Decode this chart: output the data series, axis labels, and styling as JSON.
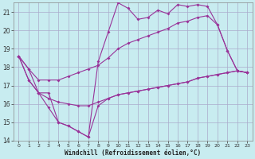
{
  "xlabel": "Windchill (Refroidissement éolien,°C)",
  "background_color": "#c8ecf0",
  "grid_color": "#aaaacc",
  "line_color": "#993399",
  "xlim_min": -0.5,
  "xlim_max": 23.5,
  "ylim_min": 14.0,
  "ylim_max": 21.5,
  "yticks": [
    14,
    15,
    16,
    17,
    18,
    19,
    20,
    21
  ],
  "xticks": [
    0,
    1,
    2,
    3,
    4,
    5,
    6,
    7,
    8,
    9,
    10,
    11,
    12,
    13,
    14,
    15,
    16,
    17,
    18,
    19,
    20,
    21,
    22,
    23
  ],
  "series": [
    {
      "x": [
        0,
        1,
        2,
        3,
        4,
        5,
        6,
        7,
        8,
        9,
        10,
        11,
        12,
        13,
        14,
        15,
        16,
        17,
        18,
        19,
        20,
        21,
        22,
        23
      ],
      "y": [
        18.6,
        17.3,
        16.6,
        16.6,
        15.0,
        14.8,
        14.5,
        14.2,
        18.3,
        19.9,
        21.5,
        21.2,
        20.6,
        20.7,
        21.1,
        20.9,
        21.4,
        21.3,
        21.4,
        21.3,
        20.3,
        18.9,
        17.8,
        17.7
      ]
    },
    {
      "x": [
        0,
        1,
        2,
        3,
        4,
        5,
        6,
        7,
        8,
        9,
        10,
        11,
        12,
        13,
        14,
        15,
        16,
        17,
        18,
        19,
        20,
        21,
        22,
        23
      ],
      "y": [
        18.6,
        17.9,
        17.3,
        17.3,
        17.3,
        17.5,
        17.7,
        17.9,
        18.1,
        18.5,
        19.0,
        19.3,
        19.5,
        19.7,
        19.9,
        20.1,
        20.4,
        20.5,
        20.7,
        20.8,
        20.3,
        18.9,
        17.8,
        17.7
      ]
    },
    {
      "x": [
        0,
        1,
        2,
        3,
        4,
        5,
        6,
        7,
        8,
        9,
        10,
        11,
        12,
        13,
        14,
        15,
        16,
        17,
        18,
        19,
        20,
        21,
        22,
        23
      ],
      "y": [
        18.6,
        17.3,
        16.6,
        15.8,
        15.0,
        14.8,
        14.5,
        14.2,
        15.9,
        16.3,
        16.5,
        16.6,
        16.7,
        16.8,
        16.9,
        17.0,
        17.1,
        17.2,
        17.4,
        17.5,
        17.6,
        17.7,
        17.8,
        17.7
      ]
    },
    {
      "x": [
        0,
        1,
        2,
        3,
        4,
        5,
        6,
        7,
        8,
        9,
        10,
        11,
        12,
        13,
        14,
        15,
        16,
        17,
        18,
        19,
        20,
        21,
        22,
        23
      ],
      "y": [
        18.6,
        17.9,
        16.6,
        16.3,
        16.1,
        16.0,
        15.9,
        15.9,
        16.1,
        16.3,
        16.5,
        16.6,
        16.7,
        16.8,
        16.9,
        17.0,
        17.1,
        17.2,
        17.4,
        17.5,
        17.6,
        17.7,
        17.8,
        17.7
      ]
    }
  ]
}
